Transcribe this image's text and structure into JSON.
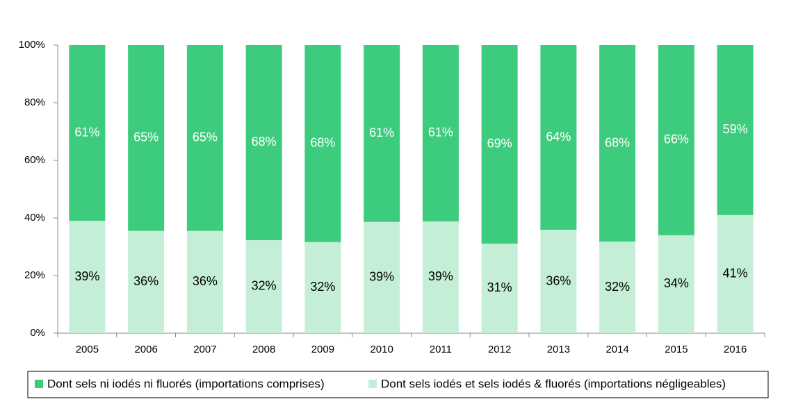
{
  "chart_data": {
    "type": "stacked-bar",
    "categories": [
      "2005",
      "2006",
      "2007",
      "2008",
      "2009",
      "2010",
      "2011",
      "2012",
      "2013",
      "2014",
      "2015",
      "2016"
    ],
    "series": [
      {
        "name": "Dont sels iodés et sels iodés & fluorés (importations négligeables)",
        "color": "#c4efd6",
        "label_color": "#000000",
        "values": [
          39.0,
          35.5,
          35.5,
          32.3,
          31.6,
          38.6,
          38.8,
          31.1,
          35.9,
          31.8,
          34.0,
          41.0
        ],
        "value_labels": [
          "39%",
          "36%",
          "36%",
          "32%",
          "32%",
          "39%",
          "39%",
          "31%",
          "36%",
          "32%",
          "34%",
          "41%"
        ]
      },
      {
        "name": "Dont sels ni iodés ni fluorés (importations comprises)",
        "color": "#3dcc7e",
        "label_color": "#ffffff",
        "values": [
          61.0,
          64.5,
          64.5,
          67.7,
          68.4,
          61.4,
          61.2,
          68.9,
          64.1,
          68.2,
          66.0,
          59.0
        ],
        "value_labels": [
          "61%",
          "65%",
          "65%",
          "68%",
          "68%",
          "61%",
          "61%",
          "69%",
          "64%",
          "68%",
          "66%",
          "59%"
        ]
      }
    ],
    "ylim": [
      0,
      100
    ],
    "yticks": [
      {
        "value": 0,
        "label": "0%"
      },
      {
        "value": 20,
        "label": "20%"
      },
      {
        "value": 40,
        "label": "40%"
      },
      {
        "value": 60,
        "label": "60%"
      },
      {
        "value": 80,
        "label": "80%"
      },
      {
        "value": 100,
        "label": "100%"
      }
    ],
    "grid": false
  }
}
